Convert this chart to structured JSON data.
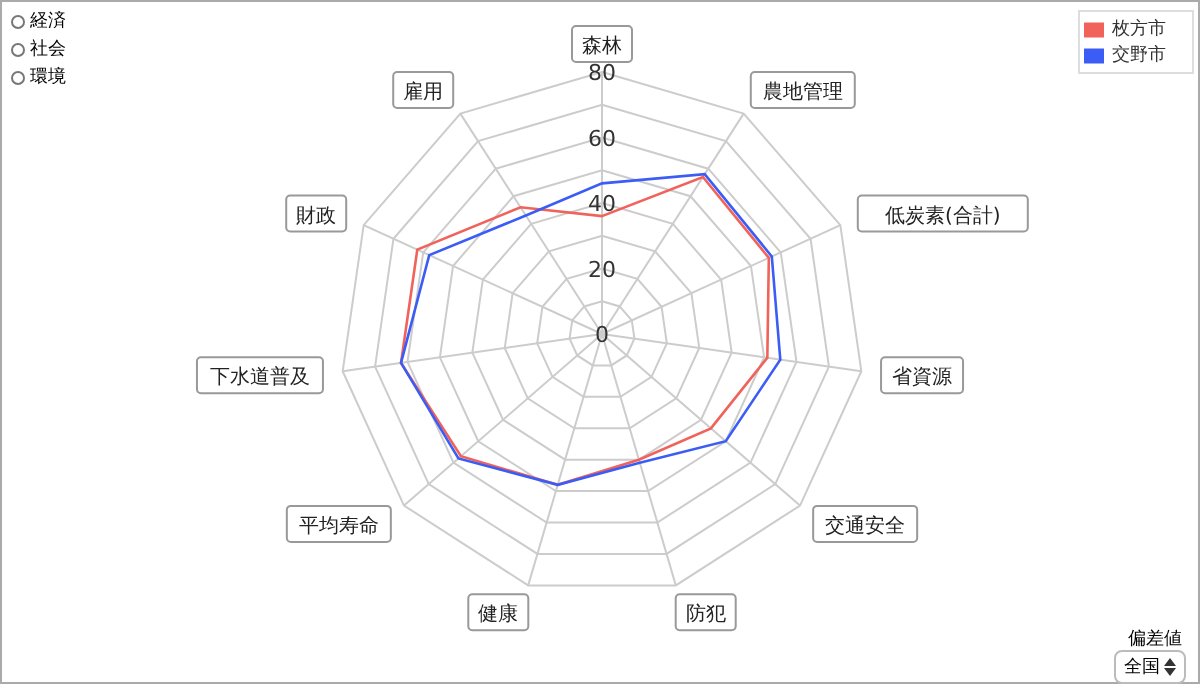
{
  "chart_data": {
    "type": "radar",
    "categories": [
      "森林",
      "農地管理",
      "低炭素(合計)",
      "省資源",
      "交通安全",
      "防犯",
      "健康",
      "平均寿命",
      "下水道普及",
      "財政",
      "雇用"
    ],
    "series": [
      {
        "name": "枚方市",
        "color": "#f0625a",
        "values": [
          36,
          57,
          56,
          51,
          44,
          40,
          48,
          57,
          62,
          62,
          46
        ]
      },
      {
        "name": "交野市",
        "color": "#3b5cf5",
        "values": [
          46,
          58,
          57,
          55,
          50,
          41,
          48,
          58,
          62,
          58,
          43
        ]
      }
    ],
    "ylim": [
      0,
      80
    ],
    "yticks": [
      0,
      20,
      40,
      60,
      80
    ],
    "grid": true,
    "legend": "top right",
    "annotations": [
      "経済",
      "社会",
      "環境",
      "偏差値",
      "全国"
    ]
  }
}
